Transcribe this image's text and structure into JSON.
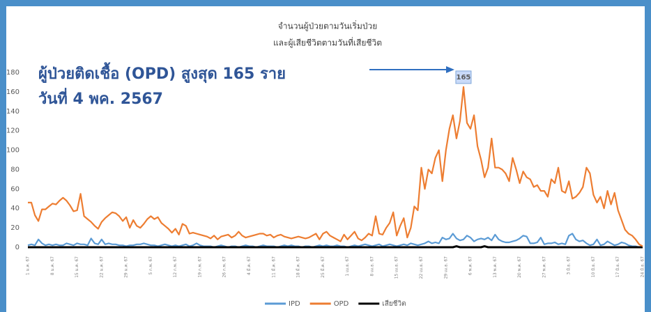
{
  "chart_data": {
    "type": "line",
    "title": [
      "จำนวนผู้ป่วยตามวันเริ่มป่วย",
      "และผู้เสียชีวิตตามวันที่เสียชีวิต"
    ],
    "annotations": [
      "ผู้ป่วยติดเชื้อ (OPD) สูงสุด 165 ราย",
      "วันที่ 4 พค. 2567"
    ],
    "categories": [
      "1 ม.ค. 67",
      null,
      null,
      null,
      null,
      null,
      null,
      "8 ม.ค. 67",
      null,
      null,
      null,
      null,
      null,
      null,
      "15 ม.ค. 67",
      null,
      null,
      null,
      null,
      null,
      null,
      "22 ม.ค. 67",
      null,
      null,
      null,
      null,
      null,
      null,
      "29 ม.ค. 67",
      null,
      null,
      null,
      null,
      null,
      null,
      "5 ก.พ. 67",
      null,
      null,
      null,
      null,
      null,
      null,
      "12 ก.พ. 67",
      null,
      null,
      null,
      null,
      null,
      null,
      "19 ก.พ. 67",
      null,
      null,
      null,
      null,
      null,
      null,
      "26 ก.พ. 67",
      null,
      null,
      null,
      null,
      null,
      null,
      "4 มี.ค. 67",
      null,
      null,
      null,
      null,
      null,
      null,
      "11 มี.ค. 67",
      null,
      null,
      null,
      null,
      null,
      null,
      "18 มี.ค. 67",
      null,
      null,
      null,
      null,
      null,
      null,
      "25 มี.ค. 67",
      null,
      null,
      null,
      null,
      null,
      null,
      "1 เม.ย. 67",
      null,
      null,
      null,
      null,
      null,
      null,
      "8 เม.ย. 67",
      null,
      null,
      null,
      null,
      null,
      null,
      "15 เม.ย. 67",
      null,
      null,
      null,
      null,
      null,
      null,
      "22 เม.ย. 67",
      null,
      null,
      null,
      null,
      null,
      null,
      "29 เม.ย. 67",
      null,
      null,
      null,
      null,
      null,
      null,
      "6 พ.ค. 67",
      null,
      null,
      null,
      null,
      null,
      null,
      "13 พ.ค. 67",
      null,
      null,
      null,
      null,
      null,
      null,
      "20 พ.ค. 67",
      null,
      null,
      null,
      null,
      null,
      null,
      "27 พ.ค. 67",
      null,
      null,
      null,
      null,
      null,
      null,
      "3 มิ.ย. 67",
      null,
      null,
      null,
      null,
      null,
      null,
      "10 มิ.ย. 67",
      null,
      null,
      null,
      null,
      null,
      null,
      "17 มิ.ย. 67",
      null,
      null,
      null,
      null,
      null,
      null,
      "24 มิ.ย. 67"
    ],
    "series": [
      {
        "name": "IPD",
        "color": "#5b9bd5",
        "values": [
          2,
          3,
          2,
          8,
          4,
          2,
          3,
          2,
          3,
          2,
          2,
          4,
          3,
          2,
          4,
          3,
          3,
          2,
          9,
          4,
          3,
          8,
          3,
          4,
          3,
          3,
          2,
          2,
          1,
          2,
          2,
          3,
          3,
          4,
          3,
          2,
          2,
          1,
          2,
          3,
          2,
          1,
          2,
          1,
          2,
          3,
          1,
          2,
          4,
          2,
          1,
          1,
          1,
          0,
          1,
          2,
          1,
          0,
          1,
          1,
          0,
          1,
          2,
          1,
          1,
          0,
          1,
          2,
          1,
          1,
          1,
          0,
          1,
          2,
          1,
          2,
          1,
          1,
          0,
          1,
          1,
          0,
          1,
          2,
          1,
          2,
          1,
          1,
          2,
          1,
          1,
          0,
          1,
          2,
          1,
          2,
          3,
          2,
          1,
          2,
          3,
          1,
          2,
          3,
          2,
          1,
          2,
          3,
          2,
          4,
          3,
          2,
          3,
          4,
          6,
          4,
          5,
          4,
          10,
          8,
          9,
          14,
          9,
          7,
          8,
          12,
          10,
          6,
          8,
          9,
          8,
          10,
          7,
          13,
          8,
          6,
          5,
          5,
          6,
          7,
          9,
          12,
          11,
          4,
          4,
          5,
          10,
          3,
          4,
          4,
          5,
          3,
          4,
          3,
          12,
          14,
          8,
          6,
          7,
          4,
          2,
          3,
          8,
          2,
          3,
          6,
          4,
          2,
          3,
          5,
          4,
          2,
          1,
          1,
          0,
          0
        ]
      },
      {
        "name": "OPD",
        "color": "#ed7d31",
        "values": [
          46,
          46,
          33,
          27,
          39,
          39,
          42,
          45,
          44,
          48,
          51,
          48,
          43,
          37,
          38,
          55,
          32,
          29,
          26,
          22,
          19,
          26,
          30,
          33,
          36,
          35,
          32,
          27,
          31,
          20,
          28,
          22,
          20,
          24,
          29,
          32,
          29,
          31,
          25,
          22,
          19,
          15,
          19,
          13,
          24,
          22,
          14,
          15,
          14,
          13,
          12,
          11,
          9,
          12,
          8,
          11,
          12,
          13,
          10,
          12,
          16,
          12,
          10,
          11,
          12,
          13,
          14,
          14,
          12,
          13,
          10,
          12,
          13,
          11,
          10,
          9,
          10,
          11,
          10,
          9,
          10,
          12,
          14,
          8,
          14,
          16,
          12,
          10,
          8,
          6,
          13,
          8,
          12,
          16,
          9,
          7,
          10,
          14,
          12,
          32,
          14,
          13,
          20,
          25,
          36,
          12,
          22,
          30,
          10,
          20,
          42,
          38,
          82,
          60,
          80,
          76,
          92,
          100,
          68,
          100,
          122,
          136,
          112,
          130,
          165,
          128,
          122,
          136,
          104,
          90,
          72,
          82,
          112,
          82,
          82,
          80,
          76,
          68,
          92,
          80,
          66,
          78,
          72,
          70,
          62,
          64,
          58,
          58,
          52,
          70,
          66,
          82,
          58,
          56,
          68,
          50,
          52,
          56,
          62,
          82,
          76,
          54,
          46,
          52,
          40,
          58,
          44,
          56,
          38,
          28,
          18,
          14,
          12,
          8,
          3,
          1
        ]
      },
      {
        "name": "เสียชีวิต",
        "color": "#000000",
        "values": [
          0,
          0,
          0,
          0,
          0,
          0,
          0,
          0,
          0,
          0,
          0,
          0,
          0,
          0,
          0,
          0,
          0,
          0,
          0,
          0,
          0,
          0,
          0,
          0,
          0,
          0,
          0,
          0,
          0,
          0,
          0,
          0,
          0,
          0,
          0,
          0,
          0,
          0,
          0,
          0,
          0,
          0,
          0,
          0,
          0,
          0,
          0,
          0,
          0,
          0,
          0,
          0,
          0,
          0,
          0,
          0,
          0,
          0,
          0,
          0,
          0,
          0,
          0,
          0,
          0,
          0,
          0,
          0,
          0,
          0,
          0,
          0,
          0,
          0,
          0,
          0,
          0,
          0,
          0,
          0,
          0,
          0,
          0,
          0,
          0,
          0,
          0,
          0,
          0,
          0,
          0,
          0,
          0,
          0,
          0,
          0,
          0,
          0,
          0,
          0,
          0,
          0,
          0,
          0,
          0,
          0,
          0,
          0,
          0,
          0,
          0,
          0,
          0,
          0,
          0,
          0,
          0,
          0,
          0,
          0,
          0,
          0,
          1,
          0,
          0,
          0,
          0,
          0,
          0,
          0,
          1,
          0,
          0,
          0,
          0,
          0,
          0,
          0,
          0,
          0,
          0,
          0,
          0,
          0,
          0,
          0,
          0,
          0,
          0,
          0,
          0,
          0,
          0,
          0,
          0,
          0,
          0,
          0,
          0,
          0,
          0,
          0,
          0,
          0,
          0,
          0,
          0,
          0,
          0,
          0,
          0,
          0,
          0,
          0,
          0,
          0
        ]
      }
    ],
    "ylim": [
      0,
      180
    ],
    "yticks": [
      0,
      20,
      40,
      60,
      80,
      100,
      120,
      140,
      160,
      180
    ],
    "grid": false,
    "legend": "bottom"
  }
}
